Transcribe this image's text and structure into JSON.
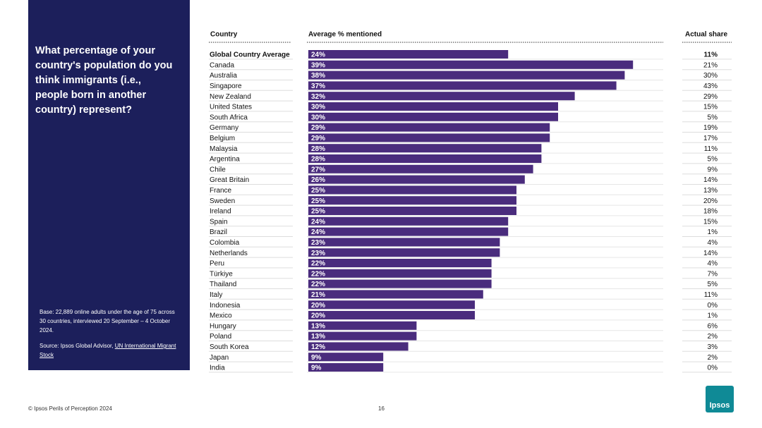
{
  "chart_data": {
    "type": "bar",
    "title": "What percentage of your country's population do you think immigrants (i.e., people born in another country) represent?",
    "column_headers": [
      "Country",
      "Average % mentioned",
      "Actual share"
    ],
    "categories": [
      "Global Country Average",
      "Canada",
      "Australia",
      "Singapore",
      "New Zealand",
      "United States",
      "South Africa",
      "Germany",
      "Belgium",
      "Malaysia",
      "Argentina",
      "Chile",
      "Great Britain",
      "France",
      "Sweden",
      "Ireland",
      "Spain",
      "Brazil",
      "Colombia",
      "Netherlands",
      "Peru",
      "Türkiye",
      "Thailand",
      "Italy",
      "Indonesia",
      "Mexico",
      "Hungary",
      "Poland",
      "South Korea",
      "Japan",
      "India"
    ],
    "values": [
      24,
      39,
      38,
      37,
      32,
      30,
      30,
      29,
      29,
      28,
      28,
      27,
      26,
      25,
      25,
      25,
      24,
      24,
      23,
      23,
      22,
      22,
      22,
      21,
      20,
      20,
      13,
      13,
      12,
      9,
      9
    ],
    "value_labels": [
      "24%",
      "39%",
      "38%",
      "37%",
      "32%",
      "30%",
      "30%",
      "29%",
      "29%",
      "28%",
      "28%",
      "27%",
      "26%",
      "25%",
      "25%",
      "25%",
      "24%",
      "24%",
      "23%",
      "23%",
      "22%",
      "22%",
      "22%",
      "21%",
      "20%",
      "20%",
      "13%",
      "13%",
      "12%",
      "9%",
      "9%"
    ],
    "actual_share": [
      "11%",
      "21%",
      "30%",
      "43%",
      "29%",
      "15%",
      "5%",
      "19%",
      "17%",
      "11%",
      "5%",
      "9%",
      "14%",
      "13%",
      "20%",
      "18%",
      "15%",
      "1%",
      "4%",
      "14%",
      "4%",
      "7%",
      "5%",
      "11%",
      "0%",
      "1%",
      "6%",
      "2%",
      "3%",
      "2%",
      "0%"
    ],
    "color": "#4a2c7d",
    "base_note": "Base: 22,889 online adults under the age of 75 across 30 countries, interviewed 20 September – 4 October 2024.",
    "source_prefix": "Source: Ipsos Global Advisor, ",
    "source_link": "UN International Migrant Stock",
    "footer": "© Ipsos Perils of Perception 2024",
    "page_number": "16",
    "logo": "Ipsos"
  }
}
